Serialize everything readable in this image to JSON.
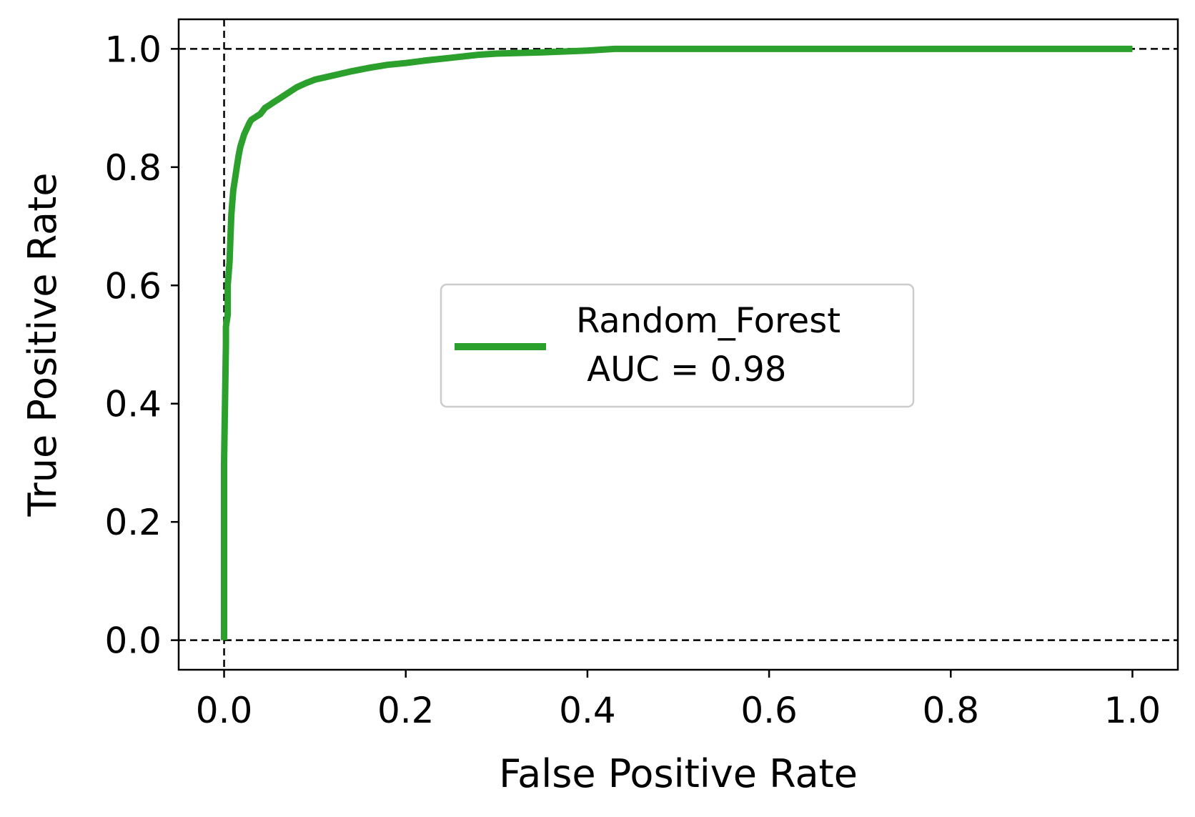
{
  "chart_data": {
    "type": "line",
    "title": "",
    "xlabel": "False Positive Rate",
    "ylabel": "True Positive Rate",
    "xlim": [
      -0.05,
      1.05
    ],
    "ylim": [
      -0.05,
      1.05
    ],
    "xticks": [
      "0.0",
      "0.2",
      "0.4",
      "0.6",
      "0.8",
      "1.0"
    ],
    "yticks": [
      "0.0",
      "0.2",
      "0.4",
      "0.6",
      "0.8",
      "1.0"
    ],
    "grid": false,
    "reference_lines": [
      {
        "orientation": "horizontal",
        "value": 1.0,
        "style": "dashed",
        "color": "#000000"
      },
      {
        "orientation": "horizontal",
        "value": 0.0,
        "style": "dashed",
        "color": "#000000"
      },
      {
        "orientation": "vertical",
        "value": 0.0,
        "style": "dashed",
        "color": "#000000"
      }
    ],
    "legend": {
      "position": "center",
      "lines": [
        "Random_Forest",
        " AUC = 0.98"
      ]
    },
    "series": [
      {
        "name": "Random_Forest\n AUC = 0.98",
        "color": "#2ca02c",
        "x": [
          0.0,
          0.0,
          0.002,
          0.002,
          0.004,
          0.004,
          0.006,
          0.007,
          0.008,
          0.01,
          0.012,
          0.014,
          0.016,
          0.018,
          0.02,
          0.022,
          0.025,
          0.028,
          0.03,
          0.035,
          0.04,
          0.045,
          0.05,
          0.055,
          0.06,
          0.07,
          0.08,
          0.09,
          0.1,
          0.12,
          0.14,
          0.16,
          0.18,
          0.2,
          0.22,
          0.25,
          0.28,
          0.3,
          0.35,
          0.4,
          0.43,
          0.5,
          0.6,
          0.8,
          1.0
        ],
        "y": [
          0.0,
          0.3,
          0.5,
          0.53,
          0.55,
          0.6,
          0.64,
          0.68,
          0.72,
          0.76,
          0.78,
          0.8,
          0.82,
          0.835,
          0.845,
          0.855,
          0.865,
          0.875,
          0.88,
          0.885,
          0.89,
          0.9,
          0.905,
          0.91,
          0.915,
          0.925,
          0.935,
          0.942,
          0.948,
          0.955,
          0.962,
          0.968,
          0.973,
          0.976,
          0.98,
          0.985,
          0.99,
          0.992,
          0.994,
          0.997,
          1.0,
          1.0,
          1.0,
          1.0,
          1.0
        ]
      }
    ]
  }
}
